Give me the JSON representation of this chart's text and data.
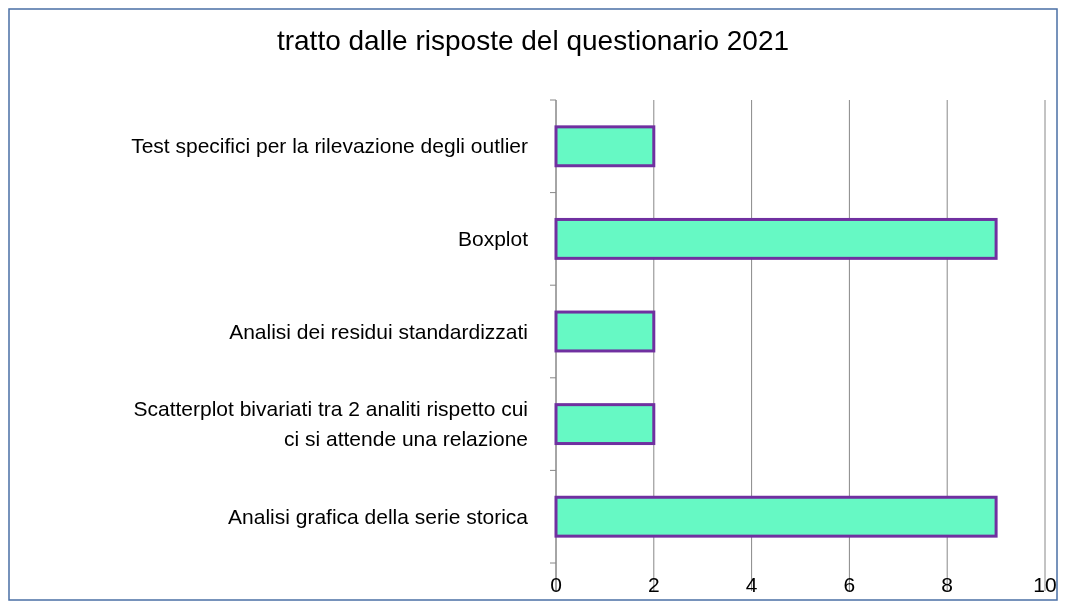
{
  "chart_data": {
    "type": "bar",
    "orientation": "horizontal",
    "title": "tratto dalle risposte del questionario 2021",
    "categories": [
      "Test specifici per la rilevazione degli outlier",
      "Boxplot",
      "Analisi dei residui standardizzati",
      "Scatterplot bivariati tra 2 analiti rispetto cui ci si attende una relazione",
      "Analisi grafica della serie storica"
    ],
    "values": [
      2,
      9,
      2,
      2,
      9
    ],
    "color": "#66f9c4",
    "xlim": [
      0,
      10
    ],
    "xticks": [
      0,
      2,
      4,
      6,
      8,
      10
    ],
    "grid": "x"
  }
}
